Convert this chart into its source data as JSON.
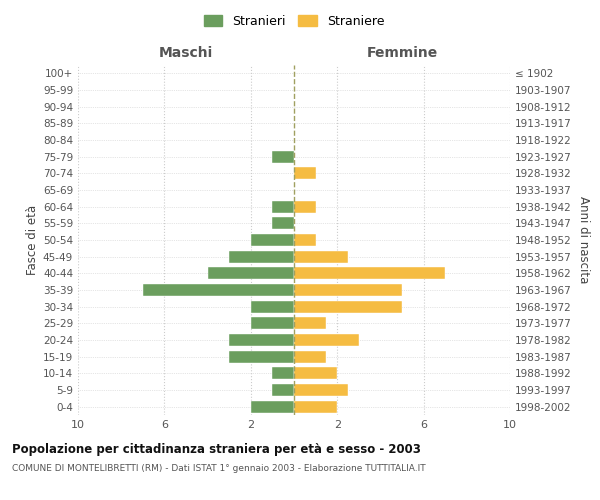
{
  "age_groups": [
    "0-4",
    "5-9",
    "10-14",
    "15-19",
    "20-24",
    "25-29",
    "30-34",
    "35-39",
    "40-44",
    "45-49",
    "50-54",
    "55-59",
    "60-64",
    "65-69",
    "70-74",
    "75-79",
    "80-84",
    "85-89",
    "90-94",
    "95-99",
    "100+"
  ],
  "birth_years": [
    "1998-2002",
    "1993-1997",
    "1988-1992",
    "1983-1987",
    "1978-1982",
    "1973-1977",
    "1968-1972",
    "1963-1967",
    "1958-1962",
    "1953-1957",
    "1948-1952",
    "1943-1947",
    "1938-1942",
    "1933-1937",
    "1928-1932",
    "1923-1927",
    "1918-1922",
    "1913-1917",
    "1908-1912",
    "1903-1907",
    "≤ 1902"
  ],
  "maschi": [
    2,
    1,
    1,
    3,
    3,
    2,
    2,
    7,
    4,
    3,
    2,
    1,
    1,
    0,
    0,
    1,
    0,
    0,
    0,
    0,
    0
  ],
  "femmine": [
    2,
    2.5,
    2,
    1.5,
    3,
    1.5,
    5,
    5,
    7,
    2.5,
    1,
    0,
    1,
    0,
    1,
    0,
    0,
    0,
    0,
    0,
    0
  ],
  "color_maschi": "#6b9e5e",
  "color_femmine": "#f5bc42",
  "color_center_line": "#a0a060",
  "title": "Popolazione per cittadinanza straniera per età e sesso - 2003",
  "subtitle": "COMUNE DI MONTELIBRETTI (RM) - Dati ISTAT 1° gennaio 2003 - Elaborazione TUTTITALIA.IT",
  "ylabel_left": "Fasce di età",
  "ylabel_right": "Anni di nascita",
  "xlabel_left": "Maschi",
  "xlabel_right": "Femmine",
  "legend_maschi": "Stranieri",
  "legend_femmine": "Straniere",
  "xlim": 10,
  "background_color": "#ffffff",
  "grid_color": "#cccccc"
}
